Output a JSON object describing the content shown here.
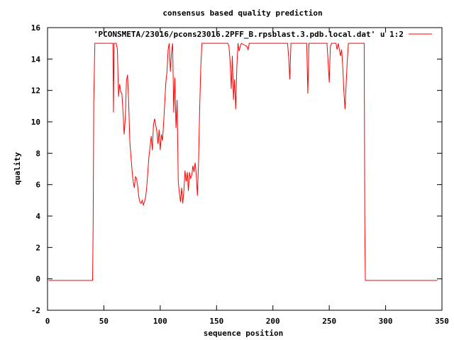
{
  "chart_data": {
    "type": "line",
    "title": "consensus based quality prediction",
    "xlabel": "sequence position",
    "ylabel": "quality",
    "xlim": [
      0,
      350
    ],
    "ylim": [
      -2,
      16
    ],
    "xticks": [
      0,
      50,
      100,
      150,
      200,
      250,
      300,
      350
    ],
    "yticks": [
      -2,
      0,
      2,
      4,
      6,
      8,
      10,
      12,
      14,
      16
    ],
    "grid": false,
    "legend_position": "top-right",
    "series": [
      {
        "name": "'PCONSMETA/23016/pcons23016.2PFF_B.rpsblast.3.pdb.local.dat' u 1:2",
        "color": "#ff0000",
        "points": [
          [
            1,
            -0.1
          ],
          [
            40,
            -0.1
          ],
          [
            40.5,
            3.6
          ],
          [
            41,
            11.2
          ],
          [
            42,
            15
          ],
          [
            58,
            15
          ],
          [
            58.5,
            10.6
          ],
          [
            59,
            15
          ],
          [
            61,
            15
          ],
          [
            62,
            14.6
          ],
          [
            63,
            11.6
          ],
          [
            64,
            12.4
          ],
          [
            65,
            11.9
          ],
          [
            66,
            11.8
          ],
          [
            67,
            10.6
          ],
          [
            68,
            9.2
          ],
          [
            69,
            10.2
          ],
          [
            70,
            12.6
          ],
          [
            71,
            13
          ],
          [
            72,
            11.2
          ],
          [
            73,
            8.8
          ],
          [
            74,
            7.8
          ],
          [
            75,
            6.9
          ],
          [
            76,
            6.2
          ],
          [
            77,
            5.8
          ],
          [
            78,
            6.5
          ],
          [
            79,
            6.4
          ],
          [
            80,
            5.9
          ],
          [
            81,
            5.2
          ],
          [
            82,
            4.9
          ],
          [
            83,
            4.8
          ],
          [
            84,
            5
          ],
          [
            85,
            4.7
          ],
          [
            86,
            4.9
          ],
          [
            87,
            5.2
          ],
          [
            88,
            5.8
          ],
          [
            89,
            6.8
          ],
          [
            90,
            7.8
          ],
          [
            91,
            8.4
          ],
          [
            92,
            9.1
          ],
          [
            93,
            8.2
          ],
          [
            94,
            9.8
          ],
          [
            95,
            10.2
          ],
          [
            96,
            9.8
          ],
          [
            97,
            9.4
          ],
          [
            98,
            8.6
          ],
          [
            99,
            9.5
          ],
          [
            100,
            8.2
          ],
          [
            101,
            9.2
          ],
          [
            102,
            8.8
          ],
          [
            103,
            9.9
          ],
          [
            104,
            11.2
          ],
          [
            105,
            12.5
          ],
          [
            106,
            13.2
          ],
          [
            107,
            14.6
          ],
          [
            108,
            15
          ],
          [
            109,
            13.2
          ],
          [
            110,
            14.4
          ],
          [
            111,
            15
          ],
          [
            112,
            10.6
          ],
          [
            113,
            12.8
          ],
          [
            114,
            9.6
          ],
          [
            115,
            11.4
          ],
          [
            116,
            6.2
          ],
          [
            117,
            5.5
          ],
          [
            118,
            4.9
          ],
          [
            119,
            5.8
          ],
          [
            120,
            4.8
          ],
          [
            121,
            5.6
          ],
          [
            122,
            6.9
          ],
          [
            123,
            6.2
          ],
          [
            124,
            6.8
          ],
          [
            125,
            5.6
          ],
          [
            126,
            6.8
          ],
          [
            127,
            6.4
          ],
          [
            128,
            6.6
          ],
          [
            129,
            7.2
          ],
          [
            130,
            6.8
          ],
          [
            131,
            7.4
          ],
          [
            132,
            6.6
          ],
          [
            133,
            5.3
          ],
          [
            134,
            7.4
          ],
          [
            135,
            10.8
          ],
          [
            136,
            13.5
          ],
          [
            137,
            15
          ],
          [
            160,
            15
          ],
          [
            161,
            14.8
          ],
          [
            162,
            13.9
          ],
          [
            163,
            12.1
          ],
          [
            164,
            14.2
          ],
          [
            165,
            11.4
          ],
          [
            166,
            12.7
          ],
          [
            167,
            10.8
          ],
          [
            168,
            13.5
          ],
          [
            169,
            15
          ],
          [
            170,
            14.5
          ],
          [
            171,
            14.8
          ],
          [
            172,
            15
          ],
          [
            177,
            14.8
          ],
          [
            178,
            14.6
          ],
          [
            179,
            15
          ],
          [
            213,
            15
          ],
          [
            214,
            14.1
          ],
          [
            215,
            12.7
          ],
          [
            216,
            15
          ],
          [
            230,
            15
          ],
          [
            231,
            11.8
          ],
          [
            232,
            15
          ],
          [
            248,
            15
          ],
          [
            249,
            13.8
          ],
          [
            250,
            12.5
          ],
          [
            251,
            14.8
          ],
          [
            252,
            15
          ],
          [
            256,
            15
          ],
          [
            257,
            14.6
          ],
          [
            258,
            15
          ],
          [
            260,
            14.2
          ],
          [
            261,
            14.6
          ],
          [
            262,
            13.5
          ],
          [
            263,
            11.9
          ],
          [
            264,
            10.8
          ],
          [
            265,
            12.4
          ],
          [
            266,
            13.9
          ],
          [
            267,
            15
          ],
          [
            281,
            15
          ],
          [
            281.5,
            3.8
          ],
          [
            282,
            -0.1
          ],
          [
            346,
            -0.1
          ]
        ]
      }
    ]
  }
}
